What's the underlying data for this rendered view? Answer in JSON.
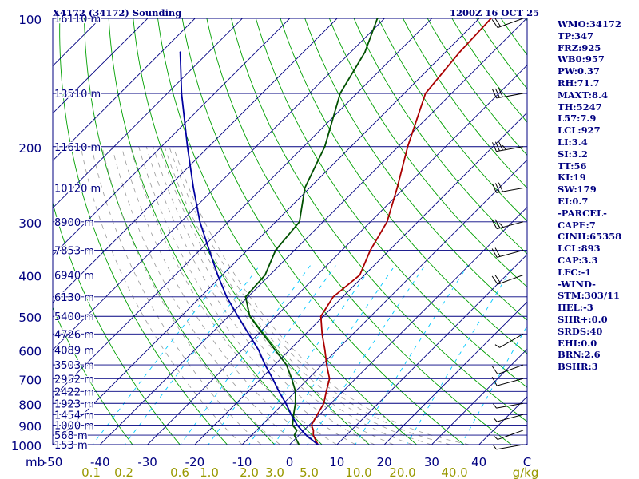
{
  "header": {
    "station": "X4172 (34172) Sounding",
    "time": "1200Z 16 OCT 25"
  },
  "stats": [
    "WMO:34172",
    "TP:347",
    "FRZ:925",
    "WB0:957",
    "PW:0.37",
    "RH:71.7",
    "MAXT:8.4",
    "TH:5247",
    "L57:7.9",
    "LCL:927",
    "LI:3.4",
    "SI:3.2",
    "TT:56",
    "KI:19",
    "SW:179",
    "EI:0.7",
    "-PARCEL-",
    "CAPE:7",
    "CINH:65358",
    "LCL:893",
    "CAP:3.3",
    "LFC:-1",
    "-WIND-",
    "STM:303/11",
    "HEL:-3",
    "SHR+:0.0",
    "SRDS:40",
    "EHI:0.0",
    "BRN:2.6",
    "BSHR:3"
  ],
  "colors": {
    "isobar": "#000080",
    "isotherm": "#000080",
    "dry_adiabat": "#00a000",
    "moist_adiabat": "#999999",
    "mixing_ratio": "#00c8ff",
    "temperature": "#aa0000",
    "dewpoint": "#005000",
    "parcel": "#0000a0",
    "text_label": "#000080",
    "mr_label": "#999900"
  },
  "chart_data": {
    "type": "skew-t log-p",
    "title": "X4172 (34172) Sounding 1200Z 16 OCT 25",
    "ylabel": "mb",
    "xlabel": "C",
    "xlim": [
      -50,
      50
    ],
    "ylim_mb": [
      1000,
      100
    ],
    "pressure_ticks": [
      100,
      200,
      300,
      400,
      500,
      600,
      700,
      800,
      900,
      1000
    ],
    "pressure_axis_labels": [
      "100",
      "200",
      "300",
      "400",
      "500",
      "600",
      "700",
      "800",
      "900",
      "1000"
    ],
    "temperature_ticks": [
      -50,
      -40,
      -30,
      -20,
      -10,
      0,
      10,
      20,
      30,
      40
    ],
    "temperature_axis_labels": [
      "-50",
      "-40",
      "-30",
      "-20",
      "-10",
      "0",
      "10",
      "20",
      "30",
      "40"
    ],
    "x_axis_unit": "C",
    "mixing_ratio_labels": [
      "0.1",
      "0.2",
      "0.6",
      "1.0",
      "2.0",
      "3.0",
      "5.0",
      "10.0",
      "20.0",
      "40.0"
    ],
    "mixing_ratio_unit": "g/kg",
    "height_levels": [
      {
        "p": 100,
        "h": "16110 m"
      },
      {
        "p": 150,
        "h": "13510 m"
      },
      {
        "p": 200,
        "h": "11610 m"
      },
      {
        "p": 250,
        "h": "10120 m"
      },
      {
        "p": 300,
        "h": "8900 m"
      },
      {
        "p": 350,
        "h": "7853 m"
      },
      {
        "p": 400,
        "h": "6940 m"
      },
      {
        "p": 450,
        "h": "6130 m"
      },
      {
        "p": 500,
        "h": "5400 m"
      },
      {
        "p": 550,
        "h": "4726 m"
      },
      {
        "p": 600,
        "h": "4089 m"
      },
      {
        "p": 650,
        "h": "3503 m"
      },
      {
        "p": 700,
        "h": "2952 m"
      },
      {
        "p": 750,
        "h": "2422 m"
      },
      {
        "p": 800,
        "h": "1923 m"
      },
      {
        "p": 850,
        "h": "1454 m"
      },
      {
        "p": 900,
        "h": "1000 m"
      },
      {
        "p": 950,
        "h": "568 m"
      },
      {
        "p": 1000,
        "h": "153 m"
      }
    ],
    "series": [
      {
        "name": "temperature",
        "points": [
          [
            1000,
            6.0
          ],
          [
            975,
            4.5
          ],
          [
            950,
            3.0
          ],
          [
            925,
            2.0
          ],
          [
            900,
            0.5
          ],
          [
            850,
            -0.5
          ],
          [
            800,
            -1.5
          ],
          [
            750,
            -3.5
          ],
          [
            700,
            -5.5
          ],
          [
            650,
            -9.0
          ],
          [
            600,
            -12.5
          ],
          [
            550,
            -16.5
          ],
          [
            500,
            -20.5
          ],
          [
            450,
            -22.0
          ],
          [
            400,
            -21.0
          ],
          [
            350,
            -24.0
          ],
          [
            300,
            -26.5
          ],
          [
            250,
            -31.5
          ],
          [
            200,
            -38.0
          ],
          [
            150,
            -45.5
          ],
          [
            120,
            -47.0
          ],
          [
            100,
            -47.5
          ]
        ]
      },
      {
        "name": "dewpoint",
        "points": [
          [
            1000,
            2.0
          ],
          [
            975,
            0.5
          ],
          [
            950,
            -1.0
          ],
          [
            925,
            -1.5
          ],
          [
            900,
            -3.5
          ],
          [
            850,
            -5.5
          ],
          [
            800,
            -7.5
          ],
          [
            750,
            -10.0
          ],
          [
            700,
            -13.5
          ],
          [
            650,
            -17.5
          ],
          [
            600,
            -23.0
          ],
          [
            550,
            -29.0
          ],
          [
            500,
            -35.5
          ],
          [
            450,
            -40.5
          ],
          [
            400,
            -41.0
          ],
          [
            350,
            -44.0
          ],
          [
            300,
            -45.0
          ],
          [
            250,
            -51.0
          ],
          [
            200,
            -55.5
          ],
          [
            150,
            -63.5
          ],
          [
            120,
            -67.0
          ],
          [
            100,
            -71.5
          ]
        ]
      },
      {
        "name": "parcel",
        "points": [
          [
            1000,
            6.0
          ],
          [
            950,
            1.5
          ],
          [
            900,
            -2.5
          ],
          [
            850,
            -6.0
          ],
          [
            800,
            -9.5
          ],
          [
            750,
            -13.5
          ],
          [
            700,
            -17.5
          ],
          [
            650,
            -22.0
          ],
          [
            600,
            -26.5
          ],
          [
            550,
            -32.0
          ],
          [
            500,
            -38.0
          ],
          [
            450,
            -44.5
          ],
          [
            400,
            -51.0
          ],
          [
            350,
            -58.0
          ],
          [
            300,
            -66.0
          ],
          [
            250,
            -74.5
          ],
          [
            200,
            -84.5
          ],
          [
            150,
            -97.0
          ],
          [
            120,
            -106.0
          ]
        ]
      }
    ],
    "wind_barbs": [
      {
        "p": 1000,
        "dir": 260,
        "kt": 5
      },
      {
        "p": 925,
        "dir": 250,
        "kt": 5
      },
      {
        "p": 850,
        "dir": 255,
        "kt": 5
      },
      {
        "p": 800,
        "dir": 260,
        "kt": 5
      },
      {
        "p": 700,
        "dir": 255,
        "kt": 10
      },
      {
        "p": 650,
        "dir": 250,
        "kt": 10
      },
      {
        "p": 550,
        "dir": 240,
        "kt": 5
      },
      {
        "p": 400,
        "dir": 250,
        "kt": 20
      },
      {
        "p": 350,
        "dir": 255,
        "kt": 20
      },
      {
        "p": 300,
        "dir": 255,
        "kt": 25
      },
      {
        "p": 250,
        "dir": 260,
        "kt": 30
      },
      {
        "p": 200,
        "dir": 260,
        "kt": 35
      },
      {
        "p": 150,
        "dir": 260,
        "kt": 30
      },
      {
        "p": 100,
        "dir": 250,
        "kt": 20
      }
    ]
  }
}
